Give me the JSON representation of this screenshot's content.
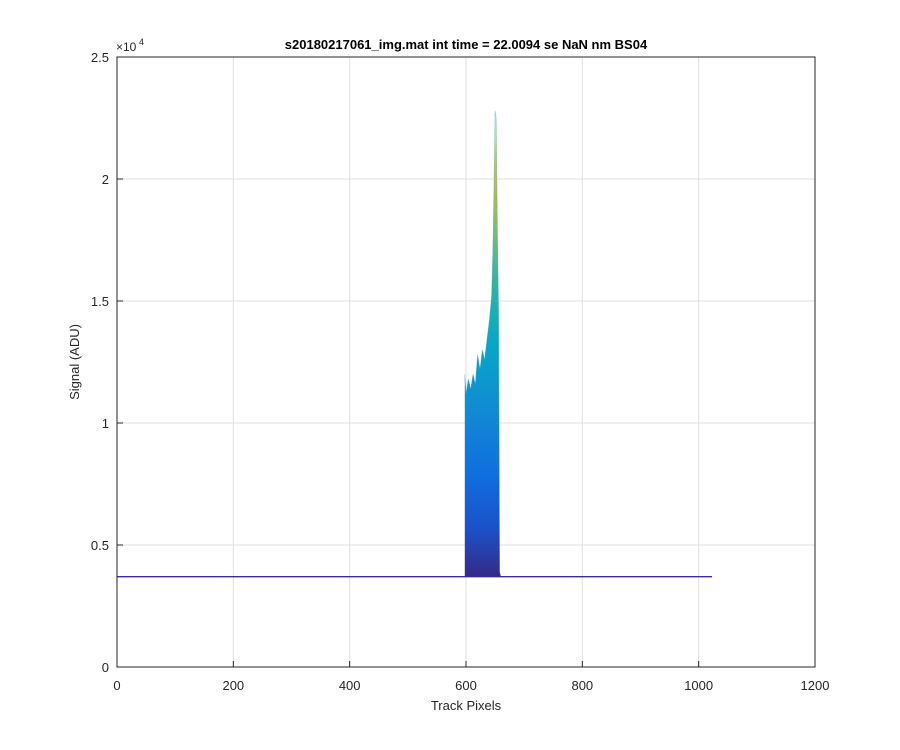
{
  "chart_data": {
    "type": "area",
    "title": "s20180217061_img.mat int time = 22.0094 se  NaN nm BS04",
    "xlabel": "Track Pixels",
    "ylabel": "Signal (ADU)",
    "xlim": [
      0,
      1200
    ],
    "ylim": [
      0,
      25000
    ],
    "x_ticks": [
      "0",
      "200",
      "400",
      "600",
      "800",
      "1000",
      "1200"
    ],
    "y_ticks": [
      "0",
      "0.5",
      "1",
      "1.5",
      "2",
      "2.5"
    ],
    "y_exponent_label": "×10",
    "y_exponent_power": "4",
    "grid": true,
    "colormap": "parula",
    "colors": {
      "baseline": "#3e26a8",
      "grid": "#dfdfdf",
      "axis": "#262626"
    },
    "series": [
      {
        "baseline_level": 3700,
        "baseline_x_range": [
          0,
          1023
        ],
        "peak_x": [
          598,
          600,
          604,
          608,
          612,
          616,
          620,
          624,
          628,
          632,
          636,
          640,
          644,
          646,
          648,
          650,
          652,
          654,
          656,
          658,
          660
        ],
        "peak_y": [
          12000,
          11200,
          11800,
          11400,
          12000,
          11600,
          12800,
          12200,
          13000,
          12600,
          13400,
          14200,
          15200,
          17000,
          19500,
          22800,
          22500,
          18000,
          14500,
          3900,
          3700
        ]
      }
    ]
  }
}
